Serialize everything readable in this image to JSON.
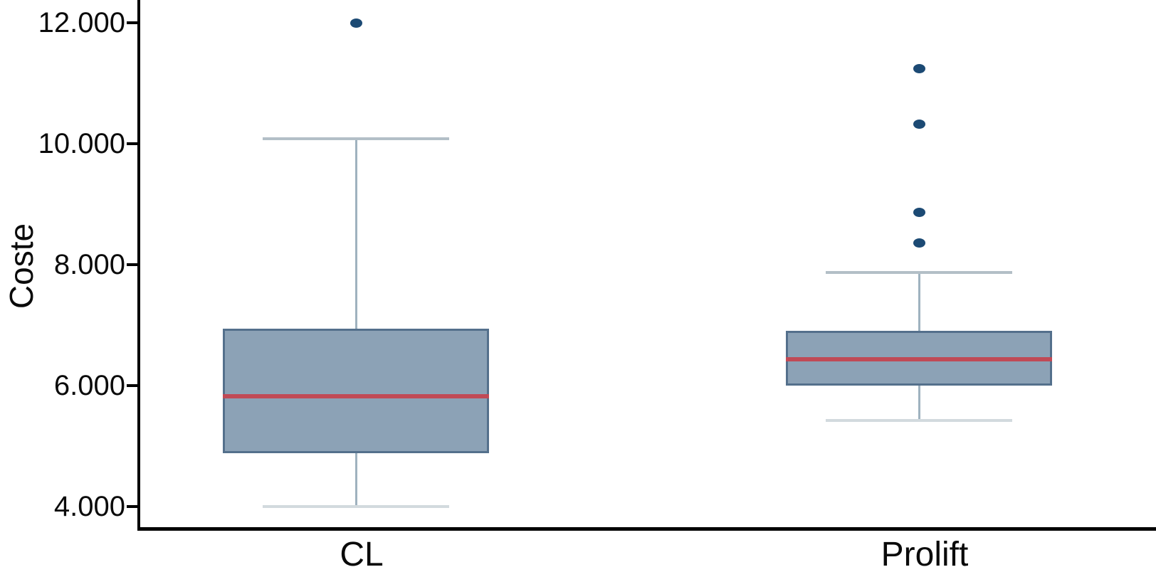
{
  "chart_data": {
    "type": "boxplot",
    "title": "",
    "ylabel": "Coste",
    "xlabel": "",
    "ylim": [
      3635,
      12375
    ],
    "grid": false,
    "yticks": [
      {
        "value": 12000,
        "label": "12.000"
      },
      {
        "value": 10000,
        "label": "10.000"
      },
      {
        "value": 8000,
        "label": "8.000"
      },
      {
        "value": 6000,
        "label": "6.000"
      },
      {
        "value": 4000,
        "label": "4.000"
      }
    ],
    "categories": [
      "CL",
      "Prolift"
    ],
    "series": [
      {
        "name": "CL",
        "whisker_low": 4000,
        "q1": 4880,
        "median": 5820,
        "q3": 6940,
        "whisker_high": 10080,
        "outliers": [
          12000
        ]
      },
      {
        "name": "Prolift",
        "whisker_low": 5420,
        "q1": 6000,
        "median": 6440,
        "q3": 6910,
        "whisker_high": 7870,
        "outliers": [
          8370,
          8870,
          10330,
          11250
        ]
      }
    ],
    "colors": {
      "box_fill": "#8ca2b6",
      "box_border": "#54708c",
      "median": "#c04a56",
      "whisker": "#9fb2bf",
      "cap_upper": "#b3bfc7",
      "cap_lower": "#d2dade",
      "outlier": "#1c4a74",
      "axis": "#000000",
      "text": "#0a0a0a"
    }
  }
}
